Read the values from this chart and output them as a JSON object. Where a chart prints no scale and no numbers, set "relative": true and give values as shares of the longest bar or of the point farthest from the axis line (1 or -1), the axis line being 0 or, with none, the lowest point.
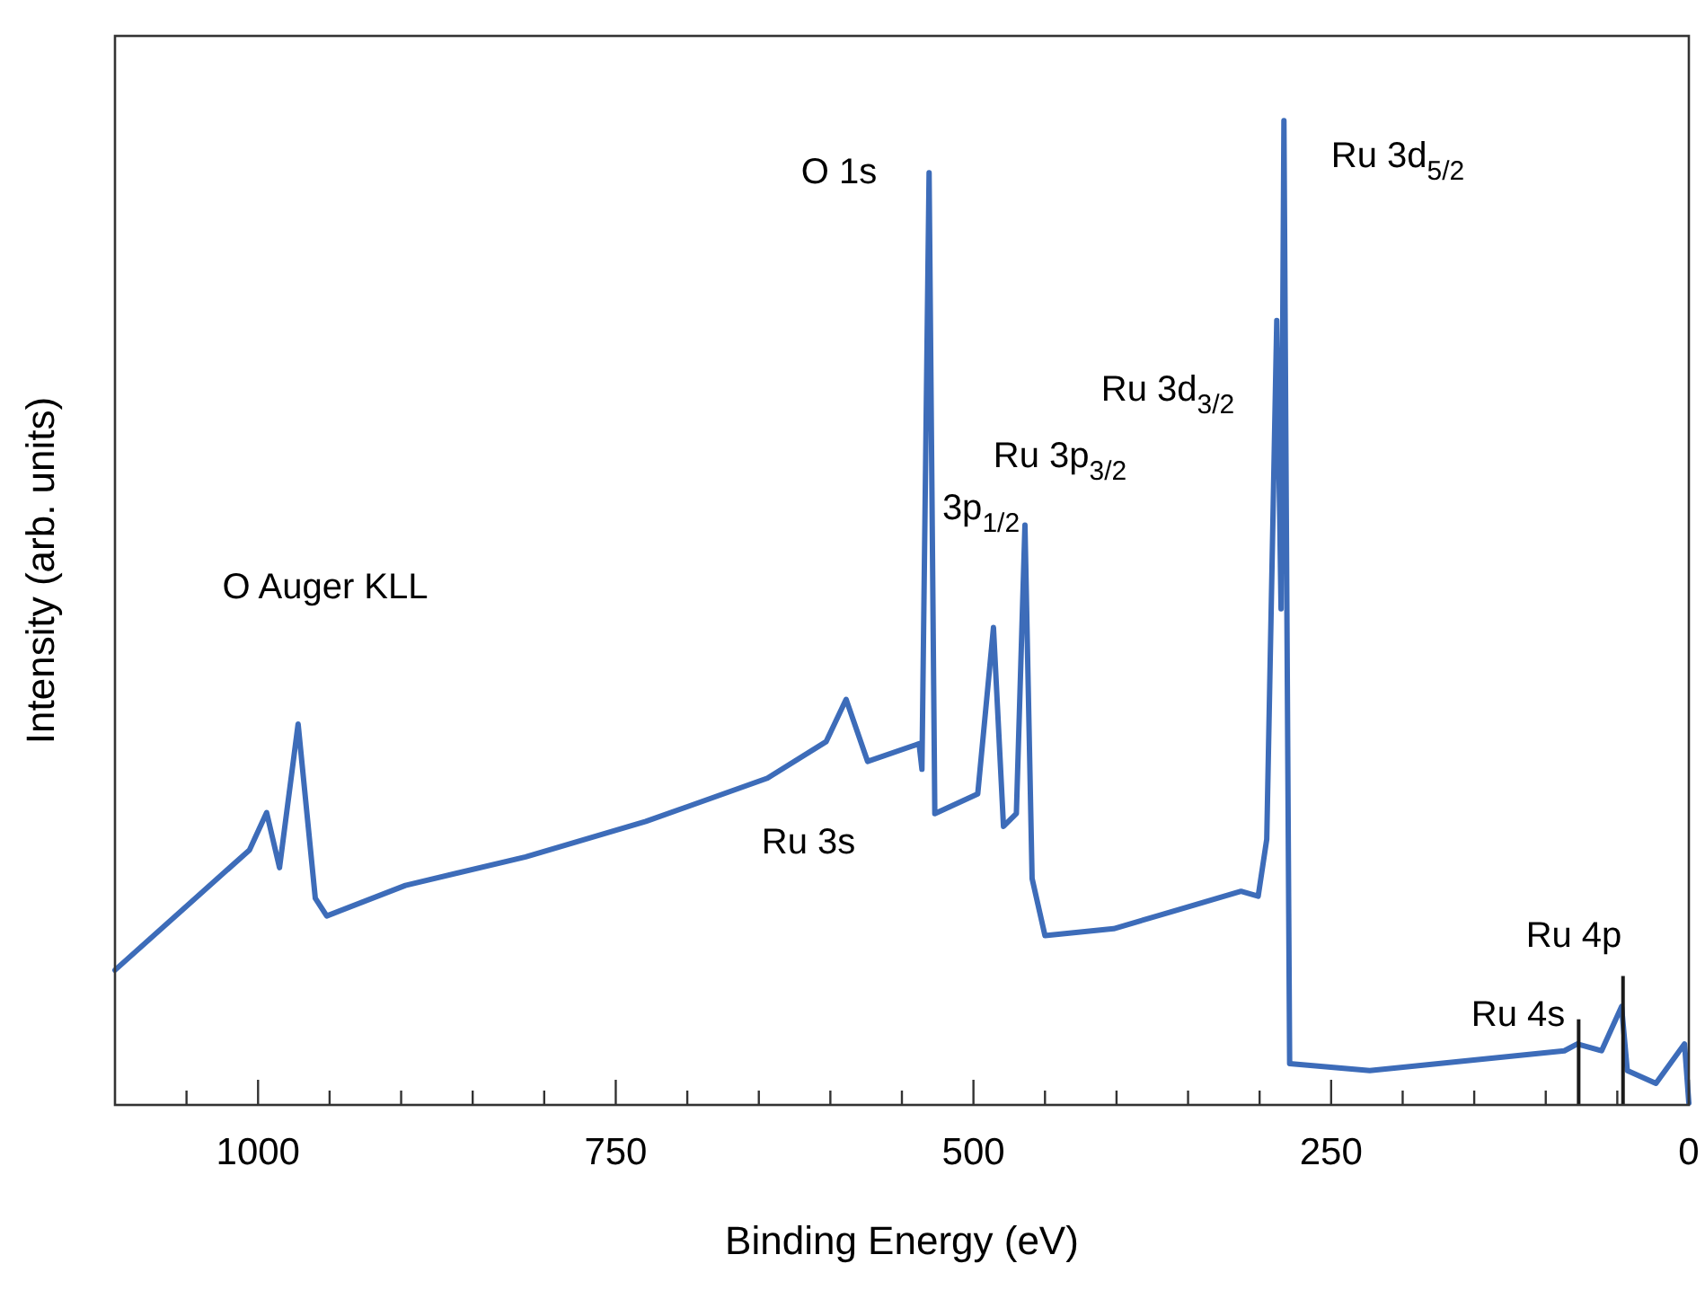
{
  "chart_data": {
    "type": "line",
    "xlabel": "Binding Energy (eV)",
    "ylabel": "Intensity (arb. units)",
    "relative": true,
    "xlim": [
      1100,
      0
    ],
    "xticks": [
      {
        "value": 1000,
        "label": "1000"
      },
      {
        "value": 750,
        "label": "750"
      },
      {
        "value": 500,
        "label": "500"
      },
      {
        "value": 250,
        "label": "250"
      },
      {
        "value": 0,
        "label": "0"
      },
      {
        "value": 1050,
        "label": null
      },
      {
        "value": 950,
        "label": null
      },
      {
        "value": 900,
        "label": null
      },
      {
        "value": 850,
        "label": null
      },
      {
        "value": 800,
        "label": null
      },
      {
        "value": 700,
        "label": null
      },
      {
        "value": 650,
        "label": null
      },
      {
        "value": 600,
        "label": null
      },
      {
        "value": 550,
        "label": null
      },
      {
        "value": 450,
        "label": null
      },
      {
        "value": 400,
        "label": null
      },
      {
        "value": 350,
        "label": null
      },
      {
        "value": 300,
        "label": null
      },
      {
        "value": 200,
        "label": null
      },
      {
        "value": 150,
        "label": null
      },
      {
        "value": 100,
        "label": null
      },
      {
        "value": 50,
        "label": null
      }
    ],
    "tick_labels": "x",
    "grid": false,
    "line_style": "solid",
    "marker": "none",
    "series": [
      {
        "color": "#3d6cb9",
        "x": [
          1100,
          1006,
          994,
          985,
          972,
          960,
          952,
          897,
          813,
          729,
          644,
          603,
          589,
          574,
          538,
          536,
          531,
          527,
          497,
          486,
          479,
          470,
          464,
          459,
          450,
          402,
          313,
          301,
          295,
          288,
          285,
          283,
          279,
          223,
          87,
          78,
          61,
          47,
          43,
          23,
          3,
          0
        ],
        "values": [
          0.137,
          0.259,
          0.297,
          0.241,
          0.387,
          0.21,
          0.192,
          0.223,
          0.252,
          0.288,
          0.332,
          0.369,
          0.412,
          0.349,
          0.367,
          0.341,
          0.947,
          0.296,
          0.316,
          0.485,
          0.283,
          0.296,
          0.589,
          0.23,
          0.172,
          0.179,
          0.217,
          0.212,
          0.27,
          0.797,
          0.504,
          1,
          0.042,
          0.035,
          0.055,
          0.062,
          0.055,
          0.1,
          0.035,
          0.022,
          0.062,
          0.002
        ]
      },
      {
        "type": "bar",
        "color": "#1a1a1a",
        "x": [
          77,
          46
        ],
        "values": [
          0.087,
          0.131
        ]
      }
    ],
    "annotations": [
      "O Auger KLL",
      "O 1s",
      "Ru 3d$_{5/2}$",
      "Ru 3d$_{3/2}$",
      "Ru 3p$_{3/2}$",
      "3p$_{1/2}$",
      "Ru 3s",
      "Ru 4p",
      "Ru 4s"
    ]
  }
}
